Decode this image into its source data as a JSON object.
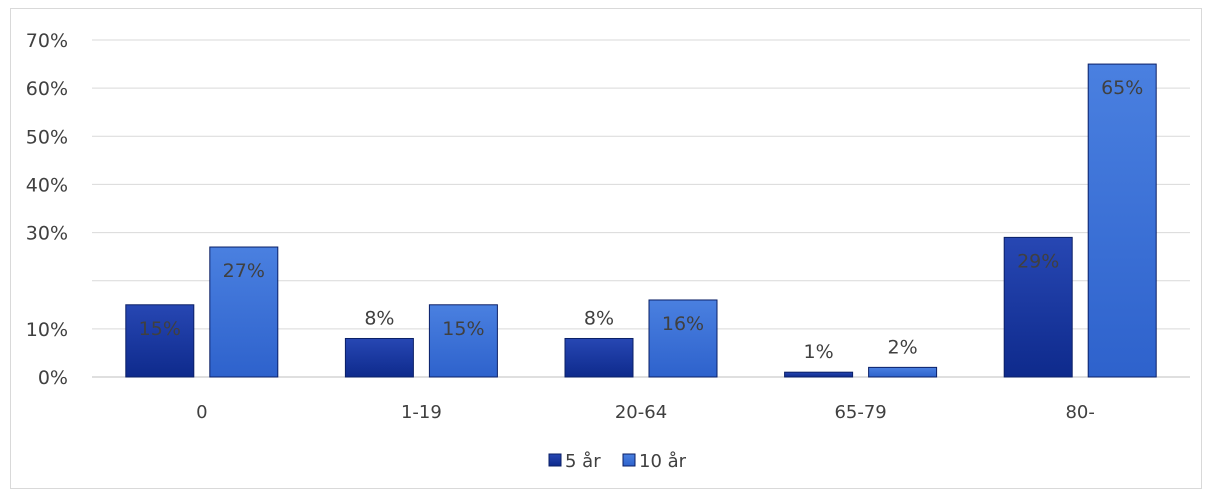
{
  "chart_data": {
    "type": "bar",
    "categories": [
      "0",
      "1-19",
      "20-64",
      "65-79",
      "80-"
    ],
    "series": [
      {
        "name": "5 år",
        "values": [
          15,
          8,
          8,
          1,
          29
        ],
        "labels": [
          "15%",
          "8%",
          "8%",
          "1%",
          "29%"
        ],
        "color": "#1f3fa6"
      },
      {
        "name": "10 år",
        "values": [
          27,
          15,
          16,
          2,
          65
        ],
        "labels": [
          "27%",
          "15%",
          "16%",
          "2%",
          "65%"
        ],
        "color": "#3d73d9"
      }
    ],
    "y_ticks": [
      "0%",
      "10%",
      "",
      "30%",
      "40%",
      "50%",
      "60%",
      "70%"
    ],
    "ylim": [
      0,
      70
    ],
    "grid": true,
    "legend_position": "bottom",
    "title": "",
    "xlabel": "",
    "ylabel": ""
  }
}
